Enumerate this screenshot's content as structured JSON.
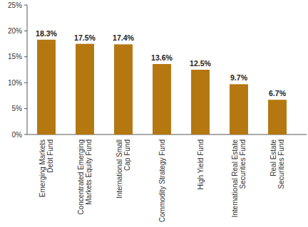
{
  "chart_data": {
    "type": "bar",
    "categories": [
      "Emerging Markets\nDebt Fund",
      "Concentrated Emerging\nMarkets Equity Fund",
      "International Small\nCap Fund",
      "Commodity Strategy Fund",
      "High Yield Fund",
      "International Real Estate\nSecurities Fund",
      "Real Estate\nSecurities Fund"
    ],
    "values": [
      18.3,
      17.5,
      17.4,
      13.6,
      12.5,
      9.7,
      6.7
    ],
    "value_labels": [
      "18.3%",
      "17.5%",
      "17.4%",
      "13.6%",
      "12.5%",
      "9.7%",
      "6.7%"
    ],
    "color": "#b5770f",
    "ylim": [
      0,
      25
    ],
    "yticks": [
      {
        "value": 0,
        "label": "0%"
      },
      {
        "value": 5,
        "label": "5%"
      },
      {
        "value": 10,
        "label": "10%"
      },
      {
        "value": 15,
        "label": "15%"
      },
      {
        "value": 20,
        "label": "20%"
      },
      {
        "value": 25,
        "label": "25%"
      }
    ],
    "grid": false,
    "data_labels": true
  }
}
